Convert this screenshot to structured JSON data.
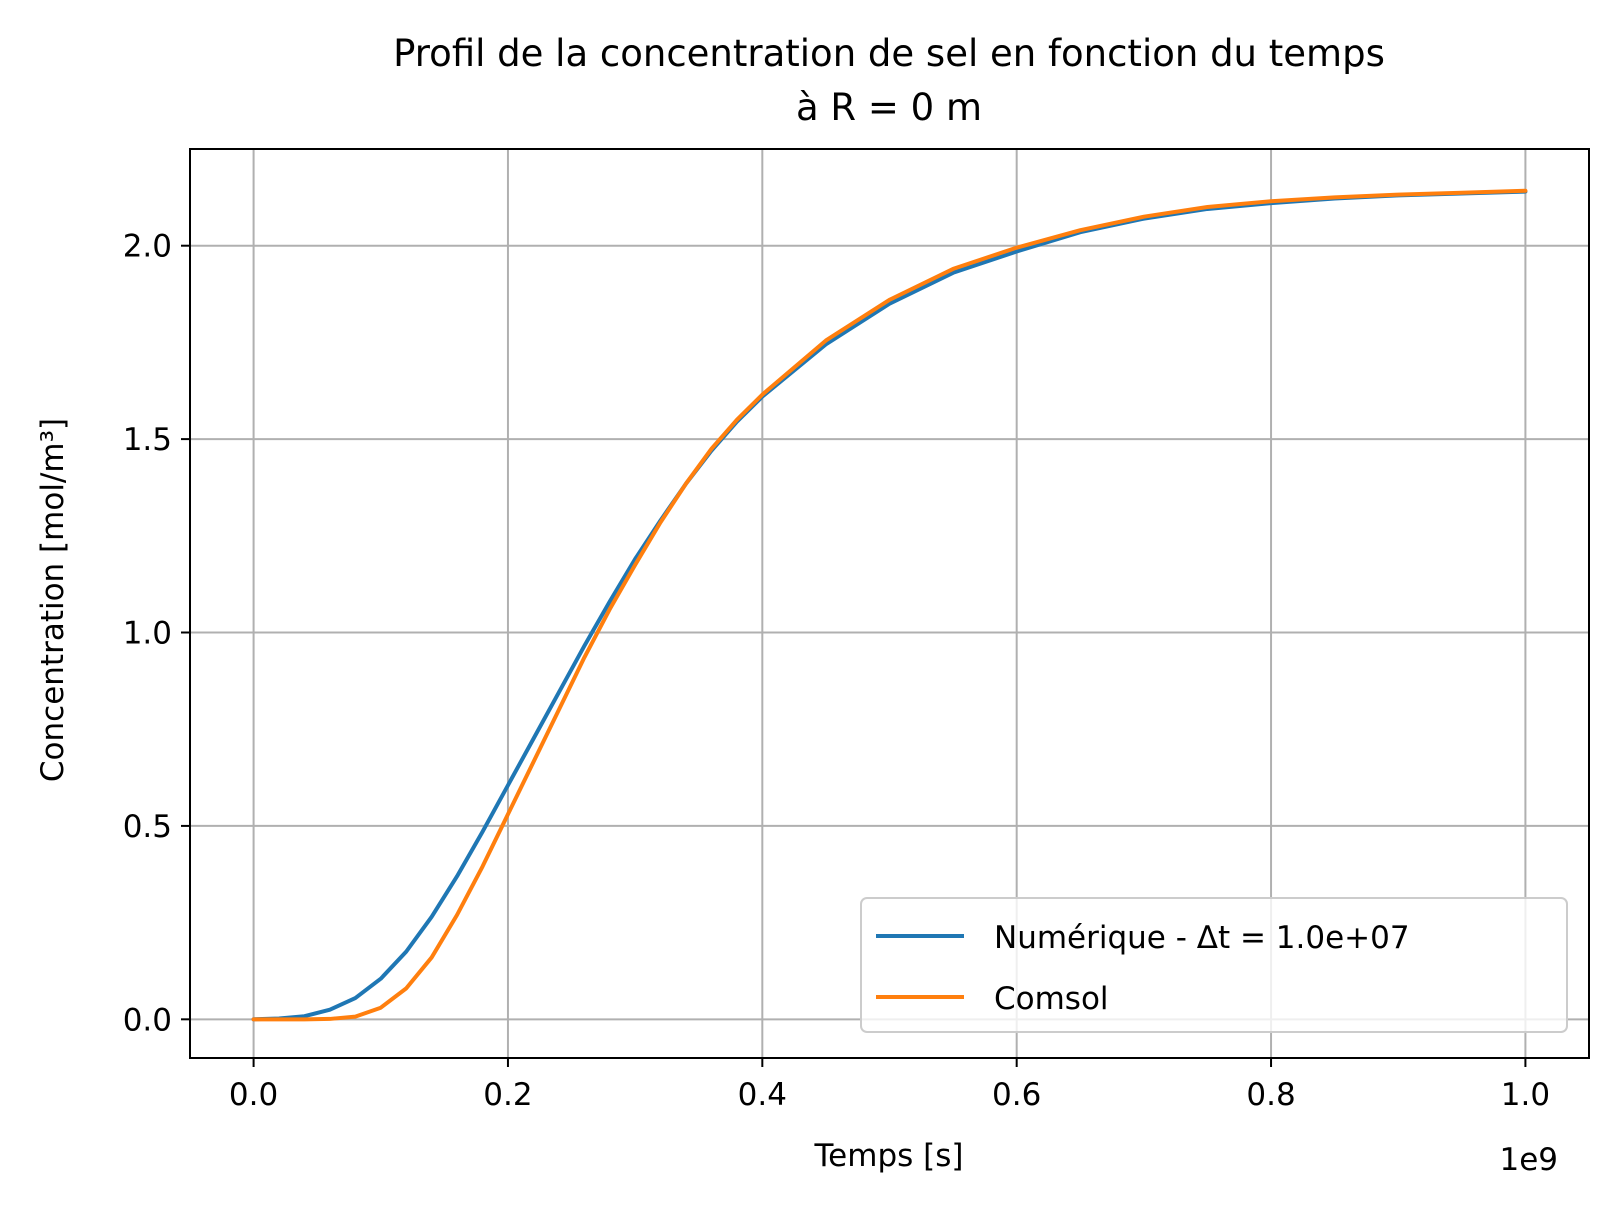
{
  "chart_data": {
    "type": "line",
    "title": "Profil de la concentration de sel en fonction du temps",
    "subtitle": "à R = 0 m",
    "xlabel": "Temps [s]",
    "ylabel": "Concentration [mol/m³]",
    "x_offset_label": "1e9",
    "x_scale_factor": 1000000000,
    "xlim": [
      -50000000,
      1050000000
    ],
    "ylim": [
      -0.1,
      2.25
    ],
    "x_ticks": [
      0,
      200000000,
      400000000,
      600000000,
      800000000,
      1000000000
    ],
    "x_tick_labels": [
      "0.0",
      "0.2",
      "0.4",
      "0.6",
      "0.8",
      "1.0"
    ],
    "y_ticks": [
      0,
      0.5,
      1.0,
      1.5,
      2.0
    ],
    "y_tick_labels": [
      "0.0",
      "0.5",
      "1.0",
      "1.5",
      "2.0"
    ],
    "grid": true,
    "legend_position": "lower right",
    "series": [
      {
        "name": "Numérique - Δt = 1.0e+07",
        "color": "#1f77b4",
        "x": [
          0,
          20000000,
          40000000,
          60000000,
          80000000,
          100000000,
          120000000,
          140000000,
          160000000,
          180000000,
          200000000,
          220000000,
          240000000,
          260000000,
          280000000,
          300000000,
          320000000,
          340000000,
          360000000,
          380000000,
          400000000,
          450000000,
          500000000,
          550000000,
          600000000,
          650000000,
          700000000,
          750000000,
          800000000,
          850000000,
          900000000,
          950000000,
          1000000000
        ],
        "y": [
          0.0,
          0.002,
          0.008,
          0.025,
          0.055,
          0.105,
          0.175,
          0.265,
          0.37,
          0.485,
          0.605,
          0.725,
          0.845,
          0.965,
          1.08,
          1.19,
          1.29,
          1.385,
          1.47,
          1.545,
          1.61,
          1.745,
          1.85,
          1.93,
          1.985,
          2.035,
          2.07,
          2.095,
          2.11,
          2.122,
          2.13,
          2.135,
          2.14
        ]
      },
      {
        "name": "Comsol",
        "color": "#ff7f0e",
        "x": [
          0,
          20000000,
          40000000,
          60000000,
          80000000,
          100000000,
          120000000,
          140000000,
          160000000,
          180000000,
          200000000,
          220000000,
          240000000,
          260000000,
          280000000,
          300000000,
          320000000,
          340000000,
          360000000,
          380000000,
          400000000,
          450000000,
          500000000,
          550000000,
          600000000,
          650000000,
          700000000,
          750000000,
          800000000,
          850000000,
          900000000,
          950000000,
          1000000000
        ],
        "y": [
          0.0,
          0.0,
          0.0,
          0.001,
          0.007,
          0.03,
          0.08,
          0.16,
          0.27,
          0.395,
          0.53,
          0.665,
          0.8,
          0.935,
          1.06,
          1.175,
          1.285,
          1.385,
          1.475,
          1.55,
          1.615,
          1.755,
          1.86,
          1.94,
          1.995,
          2.04,
          2.075,
          2.1,
          2.115,
          2.125,
          2.132,
          2.137,
          2.142
        ]
      }
    ]
  }
}
